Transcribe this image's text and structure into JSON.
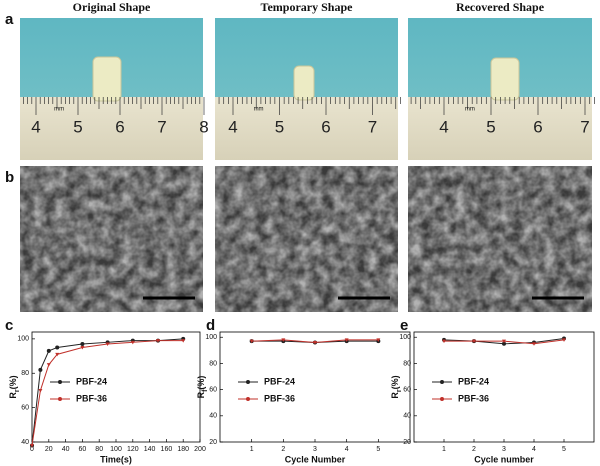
{
  "panels": [
    "a",
    "b",
    "c",
    "d",
    "e"
  ],
  "photos": [
    {
      "title": "Original Shape",
      "ruler": [
        "4",
        "5",
        "6",
        "7",
        "8"
      ],
      "unit": "mm"
    },
    {
      "title": "Temporary Shape",
      "ruler": [
        "4",
        "5",
        "6",
        "7"
      ],
      "unit": "mm"
    },
    {
      "title": "Recovered Shape",
      "ruler": [
        "4",
        "5",
        "6",
        "7"
      ],
      "unit": "mm"
    }
  ],
  "chart_data": [
    {
      "type": "line",
      "xlabel": "Time(s)",
      "ylabel": [
        "R",
        "r",
        "(%)"
      ],
      "x": [
        0,
        10,
        20,
        30,
        60,
        90,
        120,
        150,
        180
      ],
      "xlim": [
        0,
        200
      ],
      "xticks": [
        0,
        20,
        40,
        60,
        80,
        100,
        120,
        140,
        160,
        180,
        200
      ],
      "ylim": [
        40,
        104
      ],
      "yticks": [
        40,
        60,
        80,
        100
      ],
      "series": [
        {
          "name": "PBF-24",
          "color": "#222222",
          "values": [
            38,
            82,
            93,
            95,
            97,
            98,
            99,
            99,
            100
          ]
        },
        {
          "name": "PBF-36",
          "color": "#c0302a",
          "values": [
            38,
            70,
            85,
            91,
            95,
            97,
            98,
            99,
            99
          ]
        }
      ]
    },
    {
      "type": "line",
      "xlabel": "Cycle Number",
      "ylabel": [
        "R",
        "f",
        "(%)"
      ],
      "x": [
        1,
        2,
        3,
        4,
        5
      ],
      "xlim": [
        0,
        6
      ],
      "xticks": [
        1,
        2,
        3,
        4,
        5
      ],
      "ylim": [
        20,
        104
      ],
      "yticks": [
        20,
        40,
        60,
        80,
        100
      ],
      "series": [
        {
          "name": "PBF-24",
          "color": "#222222",
          "values": [
            97,
            97,
            96,
            97,
            97
          ]
        },
        {
          "name": "PBF-36",
          "color": "#c0302a",
          "values": [
            97,
            98,
            96,
            98,
            98
          ]
        }
      ]
    },
    {
      "type": "line",
      "xlabel": "Cycle number",
      "ylabel": [
        "R",
        "r",
        "(%)"
      ],
      "x": [
        1,
        2,
        3,
        4,
        5
      ],
      "xlim": [
        0,
        6
      ],
      "xticks": [
        1,
        2,
        3,
        4,
        5
      ],
      "ylim": [
        20,
        104
      ],
      "yticks": [
        20,
        40,
        60,
        80,
        100
      ],
      "series": [
        {
          "name": "PBF-24",
          "color": "#222222",
          "values": [
            98,
            97,
            95,
            96,
            99
          ]
        },
        {
          "name": "PBF-36",
          "color": "#c0302a",
          "values": [
            97,
            97,
            97,
            95,
            98
          ]
        }
      ]
    }
  ]
}
